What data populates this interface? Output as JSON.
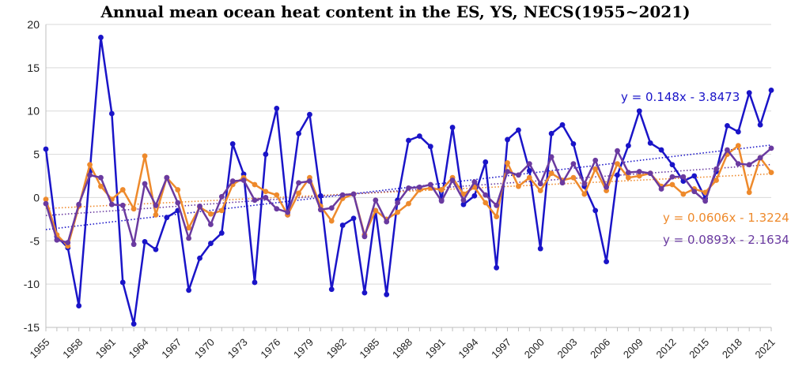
{
  "chart_data": {
    "type": "line",
    "title": "Annual mean ocean heat content in the ES, YS, NECS(1955~2021)",
    "xlabel": "",
    "ylabel": "",
    "xlim": [
      1955,
      2021
    ],
    "ylim": [
      -15,
      20
    ],
    "y_ticks": [
      -15,
      -10,
      -5,
      0,
      5,
      10,
      15,
      20
    ],
    "x_ticks": [
      1955,
      1958,
      1961,
      1964,
      1967,
      1970,
      1973,
      1976,
      1979,
      1982,
      1985,
      1988,
      1991,
      1994,
      1997,
      2000,
      2003,
      2006,
      2009,
      2012,
      2015,
      2018,
      2021
    ],
    "grid": "horizontal",
    "x": [
      1955,
      1956,
      1957,
      1958,
      1959,
      1960,
      1961,
      1962,
      1963,
      1964,
      1965,
      1966,
      1967,
      1968,
      1969,
      1970,
      1971,
      1972,
      1973,
      1974,
      1975,
      1976,
      1977,
      1978,
      1979,
      1980,
      1981,
      1982,
      1983,
      1984,
      1985,
      1986,
      1987,
      1988,
      1989,
      1990,
      1991,
      1992,
      1993,
      1994,
      1995,
      1996,
      1997,
      1998,
      1999,
      2000,
      2001,
      2002,
      2003,
      2004,
      2005,
      2006,
      2007,
      2008,
      2009,
      2010,
      2011,
      2012,
      2013,
      2014,
      2015,
      2016,
      2017,
      2018,
      2019,
      2020,
      2021
    ],
    "series": [
      {
        "color": "#1a14c8",
        "values": [
          5.6,
          -4.5,
          -5.8,
          -12.5,
          3.0,
          18.5,
          9.7,
          -9.8,
          -14.6,
          -5.1,
          -6.0,
          -2.3,
          -1.5,
          -10.7,
          -7.0,
          -5.3,
          -4.1,
          6.2,
          2.7,
          -9.8,
          5.0,
          10.3,
          -2.0,
          7.4,
          9.6,
          0.2,
          -10.6,
          -3.2,
          -2.4,
          -11.0,
          -1.5,
          -11.2,
          -0.3,
          6.6,
          7.1,
          5.9,
          -0.3,
          8.1,
          -0.8,
          0.2,
          4.1,
          -8.1,
          6.7,
          7.8,
          3.1,
          -5.9,
          7.4,
          8.4,
          6.2,
          1.3,
          -1.5,
          -7.4,
          2.6,
          6.0,
          10.0,
          6.3,
          5.5,
          3.8,
          1.9,
          2.5,
          -0.1,
          3.0,
          8.3,
          7.6,
          12.1,
          8.4,
          12.4
        ]
      },
      {
        "color": "#ee8a2c",
        "values": [
          -0.2,
          -4.3,
          -5.6,
          -1.0,
          3.8,
          1.3,
          -0.2,
          0.9,
          -1.3,
          4.8,
          -2.0,
          2.3,
          0.9,
          -3.5,
          -1.1,
          -1.9,
          -1.5,
          1.5,
          2.3,
          1.5,
          0.7,
          0.3,
          -2.0,
          0.5,
          2.3,
          -1.0,
          -2.7,
          -0.1,
          0.4,
          -4.3,
          -1.5,
          -2.5,
          -1.7,
          -0.7,
          0.9,
          1.1,
          0.9,
          2.3,
          0.4,
          1.2,
          -0.6,
          -2.2,
          4.0,
          1.3,
          2.3,
          0.8,
          2.8,
          2.0,
          2.3,
          0.4,
          3.3,
          0.8,
          3.9,
          2.3,
          2.5,
          2.8,
          1.3,
          1.5,
          0.4,
          1.0,
          0.6,
          2.0,
          5.0,
          6.0,
          0.6,
          4.6,
          2.9
        ]
      },
      {
        "color": "#6a3aa0",
        "values": [
          -0.7,
          -4.9,
          -5.2,
          -0.8,
          2.6,
          2.3,
          -0.8,
          -0.9,
          -5.4,
          1.6,
          -0.9,
          2.3,
          -0.6,
          -4.7,
          -1.0,
          -3.1,
          0.1,
          1.9,
          2.0,
          -0.3,
          0.0,
          -1.3,
          -1.7,
          1.7,
          1.9,
          -1.4,
          -1.2,
          0.3,
          0.4,
          -4.5,
          -0.3,
          -2.8,
          -0.6,
          1.1,
          1.2,
          1.5,
          -0.4,
          2.0,
          -0.3,
          1.8,
          0.3,
          -0.9,
          3.0,
          2.6,
          3.9,
          1.6,
          4.7,
          1.7,
          3.9,
          1.6,
          4.3,
          1.2,
          5.4,
          2.9,
          3.0,
          2.8,
          1.0,
          2.4,
          2.4,
          0.7,
          -0.4,
          3.3,
          5.5,
          3.9,
          3.8,
          4.6,
          5.7
        ]
      }
    ],
    "trendlines": [
      {
        "slope": 0.148,
        "intercept": -3.8473,
        "color": "#1a14c8",
        "label": "y = 0.148x - 3.8473"
      },
      {
        "slope": 0.0606,
        "intercept": -1.3224,
        "color": "#ee8a2c",
        "label": "y = 0.0606x - 1.3224"
      },
      {
        "slope": 0.0893,
        "intercept": -2.1634,
        "color": "#6a3aa0",
        "label": "y = 0.0893x - 2.1634"
      }
    ]
  }
}
